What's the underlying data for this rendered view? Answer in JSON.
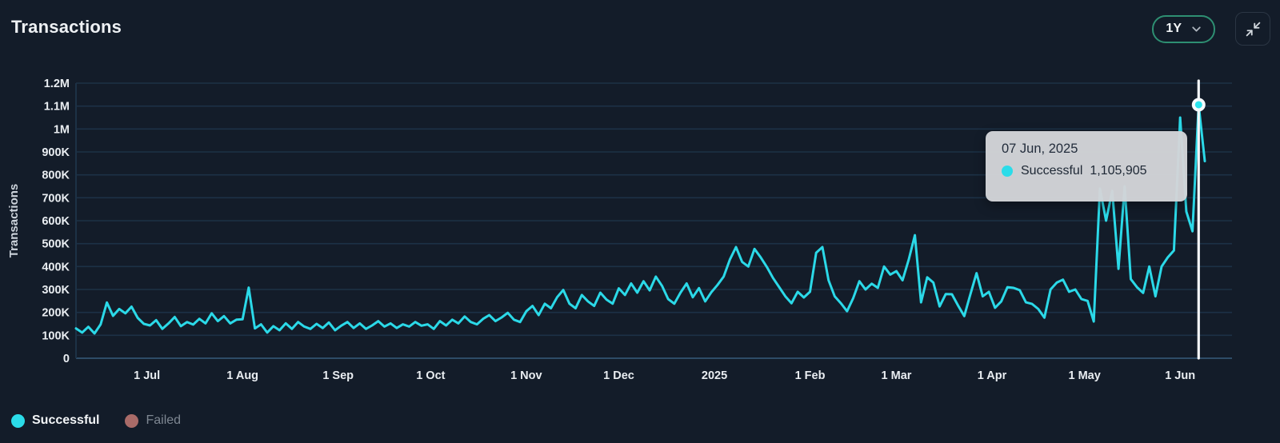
{
  "header": {
    "title": "Transactions",
    "range_selector": "1Y"
  },
  "controls": {
    "collapse_icon": "minimize-arrows-icon",
    "range_chevron": "chevron-down-icon"
  },
  "tooltip": {
    "date": "07 Jun, 2025",
    "series": "Successful",
    "value": "1,105,905"
  },
  "legend": [
    {
      "label": "Successful",
      "color": "#2bdce9",
      "active": true
    },
    {
      "label": "Failed",
      "color": "#a96b68",
      "active": false
    }
  ],
  "colors": {
    "background": "#131c29",
    "accent_line": "#2bd9e8",
    "marker_fill": "#2be4ee",
    "marker_ring": "#f7fafc",
    "grid": "#1c3146",
    "axis_line": "#2e4c67",
    "tick_text": "#e9edf1",
    "axis_label_text": "#ccd3db",
    "pill_border": "#2e8f72",
    "tooltip_bg": "#d3d5d8",
    "tooltip_text": "#232d3c",
    "failed": "#a96b68",
    "crosshair": "#f4f7f9"
  },
  "chart_data": {
    "type": "line",
    "title": "Transactions",
    "xlabel": "",
    "ylabel": "Transactions",
    "ylim": [
      0,
      1200000
    ],
    "grid": "horizontal",
    "legend_position": "bottom-left",
    "y_ticks": [
      "0",
      "100K",
      "200K",
      "300K",
      "400K",
      "500K",
      "600K",
      "700K",
      "800K",
      "900K",
      "1M",
      "1.1M",
      "1.2M"
    ],
    "x_ticks": [
      {
        "label": "1 Jul",
        "day": 23
      },
      {
        "label": "1 Aug",
        "day": 54
      },
      {
        "label": "1 Sep",
        "day": 85
      },
      {
        "label": "1 Oct",
        "day": 115
      },
      {
        "label": "1 Nov",
        "day": 146
      },
      {
        "label": "1 Dec",
        "day": 176
      },
      {
        "label": "2025",
        "day": 207
      },
      {
        "label": "1 Feb",
        "day": 238
      },
      {
        "label": "1 Mar",
        "day": 266
      },
      {
        "label": "1 Apr",
        "day": 297
      },
      {
        "label": "1 May",
        "day": 327
      },
      {
        "label": "1 Jun",
        "day": 358
      }
    ],
    "x_range_days": 366,
    "sample_interval_days": 2,
    "series": [
      {
        "name": "Successful",
        "color": "#2bd9e8",
        "values": [
          130000,
          112000,
          137000,
          108000,
          148000,
          243000,
          185000,
          215000,
          196000,
          225000,
          176000,
          150000,
          143000,
          166000,
          128000,
          152000,
          180000,
          140000,
          158000,
          147000,
          172000,
          152000,
          196000,
          162000,
          184000,
          152000,
          168000,
          170000,
          308000,
          130000,
          148000,
          112000,
          140000,
          122000,
          152000,
          128000,
          158000,
          138000,
          128000,
          150000,
          132000,
          156000,
          122000,
          142000,
          158000,
          132000,
          152000,
          128000,
          143000,
          162000,
          138000,
          152000,
          132000,
          148000,
          138000,
          158000,
          142000,
          148000,
          128000,
          162000,
          143000,
          168000,
          152000,
          182000,
          158000,
          148000,
          172000,
          188000,
          162000,
          178000,
          198000,
          168000,
          158000,
          205000,
          228000,
          188000,
          238000,
          218000,
          266000,
          298000,
          238000,
          218000,
          276000,
          248000,
          228000,
          286000,
          256000,
          238000,
          305000,
          276000,
          326000,
          286000,
          336000,
          296000,
          356000,
          316000,
          258000,
          238000,
          286000,
          326000,
          266000,
          306000,
          248000,
          288000,
          320000,
          356000,
          430000,
          485000,
          420000,
          400000,
          477000,
          440000,
          398000,
          350000,
          310000,
          270000,
          240000,
          290000,
          265000,
          290000,
          460000,
          485000,
          340000,
          270000,
          240000,
          205000,
          262000,
          336000,
          300000,
          325000,
          307000,
          400000,
          365000,
          380000,
          340000,
          430000,
          537000,
          244000,
          353000,
          330000,
          226000,
          280000,
          279000,
          230000,
          184000,
          279000,
          371000,
          270000,
          290000,
          220000,
          248000,
          310000,
          307000,
          297000,
          244000,
          237000,
          215000,
          177000,
          300000,
          330000,
          343000,
          290000,
          300000,
          258000,
          250000,
          160000,
          740000,
          600000,
          730000,
          390000,
          750000,
          345000,
          310000,
          285000,
          400000,
          270000,
          400000,
          440000,
          470000,
          1050000,
          640000,
          554000,
          1105905,
          860000
        ]
      },
      {
        "name": "Failed",
        "color": "#a96b68",
        "values": []
      }
    ],
    "highlight": {
      "index": 182,
      "date": "07 Jun, 2025",
      "series": "Successful",
      "value": 1105905
    }
  }
}
